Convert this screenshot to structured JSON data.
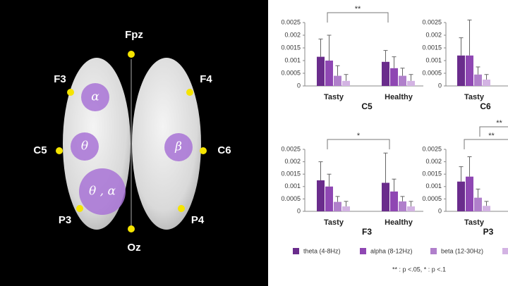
{
  "diagram": {
    "electrodes": [
      "Fpz",
      "F3",
      "F4",
      "C5",
      "C6",
      "P3",
      "P4",
      "Oz"
    ],
    "regions": [
      "α",
      "θ",
      "β",
      "θ , α"
    ]
  },
  "legend": [
    {
      "name": "theta (4-8Hz)",
      "color": "#6a2c8c"
    },
    {
      "name": "alpha (8-12Hz)",
      "color": "#8f47b3"
    },
    {
      "name": "beta  (12-30Hz)",
      "color": "#b07fcb"
    },
    {
      "color": "#d3b3e3"
    }
  ],
  "footnote": "** : p <.05,  * : p <.1",
  "chart_data": [
    {
      "type": "bar",
      "title": "C5",
      "categories": [
        "Tasty",
        "Healthy"
      ],
      "ylim": [
        0,
        0.0025
      ],
      "yticks": [
        0,
        0.0005,
        0.001,
        0.0015,
        0.002,
        0.0025
      ],
      "series": [
        {
          "values": [
            0.00115,
            0.00095
          ],
          "errors": [
            0.0007,
            0.00045
          ]
        },
        {
          "values": [
            0.001,
            0.0007
          ],
          "errors": [
            0.001,
            0.00045
          ]
        },
        {
          "values": [
            0.0004,
            0.0004
          ],
          "errors": [
            0.0004,
            0.0003
          ]
        },
        {
          "values": [
            0.0002,
            0.0002
          ],
          "errors": [
            0.00025,
            0.00025
          ]
        }
      ],
      "annotations": [
        "**"
      ]
    },
    {
      "type": "bar",
      "title": "C6",
      "categories": [
        "Tasty"
      ],
      "ylim": [
        0,
        0.0025
      ],
      "yticks": [
        0,
        0.0005,
        0.001,
        0.0015,
        0.002,
        0.0025
      ],
      "series": [
        {
          "values": [
            0.0012
          ],
          "errors": [
            0.0007
          ]
        },
        {
          "values": [
            0.0012
          ],
          "errors": [
            0.0014
          ]
        },
        {
          "values": [
            0.00045
          ],
          "errors": [
            0.0003
          ]
        },
        {
          "values": [
            0.00025
          ],
          "errors": [
            0.0002
          ]
        }
      ]
    },
    {
      "type": "bar",
      "title": "F3",
      "categories": [
        "Tasty",
        "Healthy"
      ],
      "ylim": [
        0,
        0.0025
      ],
      "yticks": [
        0,
        0.0005,
        0.001,
        0.0015,
        0.002,
        0.0025
      ],
      "series": [
        {
          "values": [
            0.00125,
            0.00115
          ],
          "errors": [
            0.00075,
            0.0012
          ]
        },
        {
          "values": [
            0.001,
            0.0008
          ],
          "errors": [
            0.0005,
            0.0005
          ]
        },
        {
          "values": [
            0.00038,
            0.0004
          ],
          "errors": [
            0.00022,
            0.0002
          ]
        },
        {
          "values": [
            0.0002,
            0.0002
          ],
          "errors": [
            0.0002,
            0.0002
          ]
        }
      ],
      "annotations": [
        "*"
      ]
    },
    {
      "type": "bar",
      "title": "P3",
      "categories": [
        "Tasty"
      ],
      "ylim": [
        0,
        0.0025
      ],
      "yticks": [
        0,
        0.0005,
        0.001,
        0.0015,
        0.002,
        0.0025
      ],
      "series": [
        {
          "values": [
            0.0012
          ],
          "errors": [
            0.0006
          ]
        },
        {
          "values": [
            0.0014
          ],
          "errors": [
            0.0008
          ]
        },
        {
          "values": [
            0.00055
          ],
          "errors": [
            0.00035
          ]
        },
        {
          "values": [
            0.00022
          ],
          "errors": [
            0.00018
          ]
        }
      ],
      "annotations": [
        "**",
        "**"
      ]
    }
  ]
}
